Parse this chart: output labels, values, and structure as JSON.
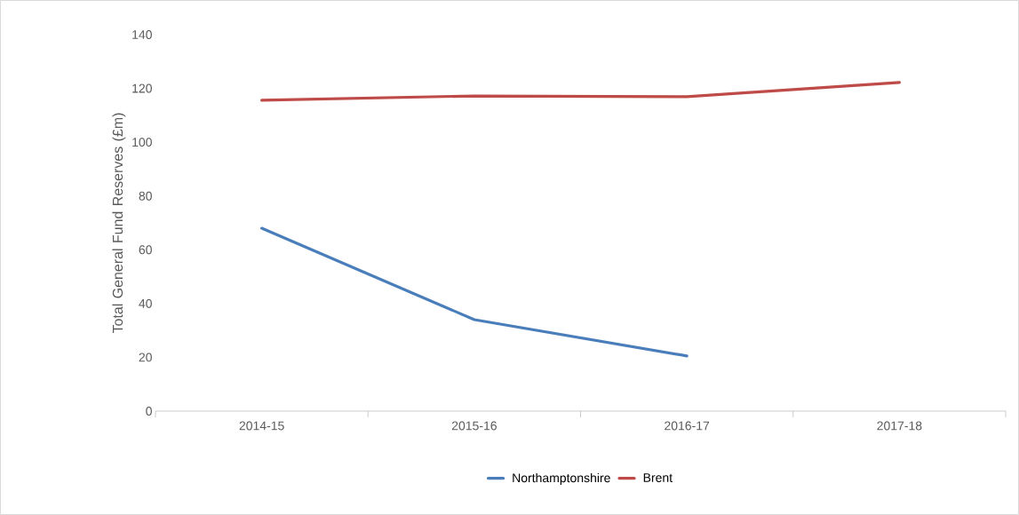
{
  "chart_data": {
    "type": "line",
    "ylabel": "Total General Fund Reserves (£m)",
    "categories": [
      "2014-15",
      "2015-16",
      "2016-17",
      "2017-18"
    ],
    "series": [
      {
        "name": "Northamptonshire",
        "color": "#4a7ebb",
        "values": [
          68,
          34,
          20.5,
          null
        ]
      },
      {
        "name": "Brent",
        "color": "#be4b48",
        "values": [
          115.6,
          117.2,
          116.9,
          122.2
        ]
      }
    ],
    "ylim": [
      0,
      140
    ],
    "yticks": [
      0,
      20,
      40,
      60,
      80,
      100,
      120,
      140
    ],
    "legend": "bottom",
    "marker": "none",
    "line_style": "solid",
    "grid": false
  }
}
